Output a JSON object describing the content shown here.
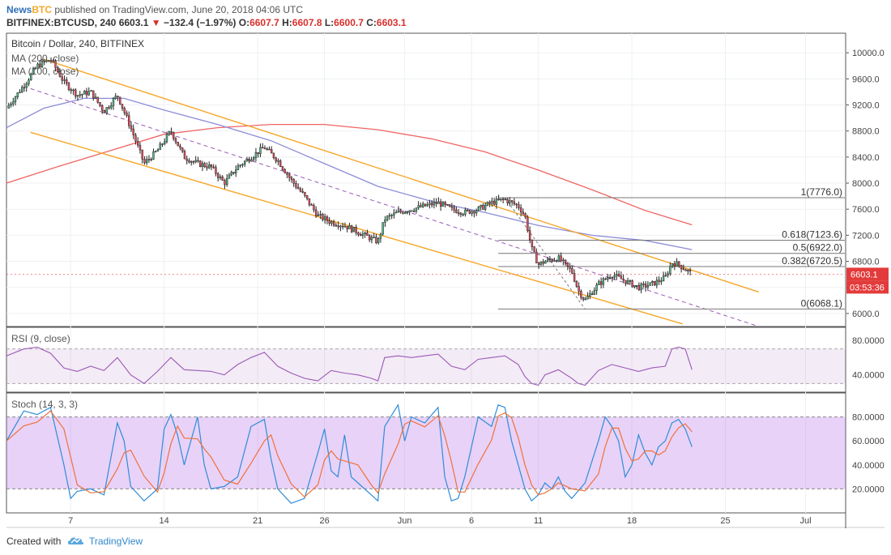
{
  "header": {
    "publisher_a": "News",
    "publisher_b": "BTC",
    "published_text": "published on TradingView.com, June 20, 2018 04:06 UTC",
    "symbol": "BITFINEX:BTCUSD, 240",
    "last": "6603.1",
    "change": "−132.4 (−1.97%)",
    "o_label": "O:",
    "o_value": "6607.7",
    "h_label": "H:",
    "h_value": "6607.8",
    "l_label": "L:",
    "l_value": "6600.7",
    "c_label": "C:",
    "c_value": "6603.1"
  },
  "chart_data": {
    "type": "candlestick",
    "title": "Bitcoin / Dollar, 240, BITFINEX",
    "indicators": [
      "MA (200, close)",
      "MA (100, close)"
    ],
    "ylim": [
      5800,
      10300
    ],
    "y_ticks": [
      6000,
      6400,
      6800,
      7200,
      7600,
      8000,
      8400,
      8800,
      9200,
      9600,
      10000
    ],
    "y_tick_labels": [
      "6000.0",
      "6400.0",
      "6800.0",
      "7200.0",
      "7600.0",
      "8000.0",
      "8400.0",
      "8800.0",
      "9200.0",
      "9600.0",
      "10000.0"
    ],
    "x_tick_labels": [
      "7",
      "14",
      "21",
      "26",
      "Jun",
      "6",
      "11",
      "18",
      "25",
      "Jul"
    ],
    "x_tick_days": [
      7,
      14,
      21,
      26,
      32,
      37,
      42,
      49,
      56,
      62
    ],
    "xlim_days": [
      2.2,
      65.0
    ],
    "colors": {
      "up": "#53b987",
      "down": "#eb4d5c",
      "wick": "#222222",
      "channel": "#f7a628",
      "ma200": "#f06464",
      "ma100": "#8c8cd8",
      "midline": "#9b59b6",
      "fib": "#777777"
    },
    "price_path": [
      [
        2.2,
        9150
      ],
      [
        3.5,
        9500
      ],
      [
        4.5,
        9800
      ],
      [
        5.5,
        9900
      ],
      [
        6.5,
        9550
      ],
      [
        7.5,
        9350
      ],
      [
        8.5,
        9400
      ],
      [
        9.5,
        9100
      ],
      [
        10.5,
        9350
      ],
      [
        11.5,
        8850
      ],
      [
        12.5,
        8300
      ],
      [
        13.5,
        8500
      ],
      [
        14.5,
        8800
      ],
      [
        15.5,
        8400
      ],
      [
        16.5,
        8300
      ],
      [
        17.5,
        8250
      ],
      [
        18.5,
        8000
      ],
      [
        19.5,
        8250
      ],
      [
        20.5,
        8400
      ],
      [
        21.5,
        8550
      ],
      [
        22.5,
        8350
      ],
      [
        23.5,
        8050
      ],
      [
        24.5,
        7800
      ],
      [
        25.5,
        7500
      ],
      [
        26.5,
        7400
      ],
      [
        27.5,
        7350
      ],
      [
        28.5,
        7250
      ],
      [
        29.5,
        7150
      ],
      [
        30.0,
        7100
      ],
      [
        30.5,
        7450
      ],
      [
        31.5,
        7550
      ],
      [
        32.5,
        7600
      ],
      [
        33.5,
        7650
      ],
      [
        34.5,
        7700
      ],
      [
        35.5,
        7600
      ],
      [
        36.5,
        7550
      ],
      [
        37.5,
        7600
      ],
      [
        38.5,
        7700
      ],
      [
        39.5,
        7750
      ],
      [
        40.5,
        7650
      ],
      [
        41.0,
        7500
      ],
      [
        41.5,
        7000
      ],
      [
        42.0,
        6750
      ],
      [
        42.5,
        6800
      ],
      [
        43.5,
        6850
      ],
      [
        44.5,
        6650
      ],
      [
        45.0,
        6350
      ],
      [
        45.5,
        6200
      ],
      [
        46.5,
        6450
      ],
      [
        47.5,
        6600
      ],
      [
        48.5,
        6500
      ],
      [
        49.5,
        6400
      ],
      [
        50.5,
        6450
      ],
      [
        51.5,
        6550
      ],
      [
        52.0,
        6780
      ],
      [
        52.5,
        6750
      ],
      [
        53.5,
        6603
      ]
    ],
    "last_price": "6603.1",
    "countdown": "03:53:36",
    "ma200": [
      [
        2.2,
        8000
      ],
      [
        6,
        8250
      ],
      [
        10,
        8500
      ],
      [
        14,
        8750
      ],
      [
        18,
        8850
      ],
      [
        22,
        8900
      ],
      [
        26,
        8900
      ],
      [
        30,
        8820
      ],
      [
        34,
        8680
      ],
      [
        38,
        8480
      ],
      [
        42,
        8200
      ],
      [
        46,
        7900
      ],
      [
        50,
        7580
      ],
      [
        53.5,
        7360
      ]
    ],
    "ma100": [
      [
        2.2,
        8850
      ],
      [
        5,
        9150
      ],
      [
        8,
        9300
      ],
      [
        11,
        9300
      ],
      [
        14,
        9120
      ],
      [
        18,
        8900
      ],
      [
        22,
        8650
      ],
      [
        26,
        8300
      ],
      [
        30,
        7950
      ],
      [
        34,
        7720
      ],
      [
        38,
        7550
      ],
      [
        42,
        7350
      ],
      [
        46,
        7200
      ],
      [
        50,
        7120
      ],
      [
        53.5,
        6980
      ]
    ],
    "channel_upper": [
      [
        5.0,
        9900
      ],
      [
        58.5,
        6330
      ]
    ],
    "channel_lower": [
      [
        4.0,
        8780
      ],
      [
        52.8,
        5840
      ]
    ],
    "channel_mid": [
      [
        4.0,
        9450
      ],
      [
        58.5,
        5800
      ]
    ],
    "fib_connector": [
      [
        39.5,
        7776
      ],
      [
        45.5,
        6068
      ]
    ],
    "fib_levels": [
      {
        "label": "1(7776.0)",
        "value": 7776
      },
      {
        "label": "0.618(7123.6)",
        "value": 7123.6
      },
      {
        "label": "0.5(6922.0)",
        "value": 6922
      },
      {
        "label": "0.382(6720.5)",
        "value": 6720.5
      },
      {
        "label": "0(6068.1)",
        "value": 6068.1
      }
    ],
    "fib_start_day": 39.0,
    "rsi": {
      "label": "RSI (9, close)",
      "ylim": [
        20,
        95
      ],
      "ticks": [
        40,
        80
      ],
      "tick_labels": [
        "40.0000",
        "80.0000"
      ],
      "band": [
        30,
        70
      ],
      "color": "#9b59b6",
      "values": [
        [
          2.2,
          62
        ],
        [
          3.5,
          70
        ],
        [
          4.5,
          72
        ],
        [
          5.5,
          65
        ],
        [
          6.5,
          48
        ],
        [
          7.5,
          44
        ],
        [
          8.5,
          50
        ],
        [
          9.5,
          45
        ],
        [
          10.5,
          60
        ],
        [
          11.5,
          40
        ],
        [
          12.5,
          30
        ],
        [
          13.5,
          44
        ],
        [
          14.5,
          60
        ],
        [
          15.5,
          46
        ],
        [
          16.5,
          45
        ],
        [
          17.5,
          44
        ],
        [
          18.5,
          40
        ],
        [
          19.5,
          52
        ],
        [
          20.5,
          60
        ],
        [
          21.5,
          66
        ],
        [
          22.5,
          50
        ],
        [
          23.5,
          42
        ],
        [
          24.5,
          36
        ],
        [
          25.5,
          33
        ],
        [
          26.5,
          45
        ],
        [
          27.5,
          42
        ],
        [
          28.5,
          40
        ],
        [
          29.5,
          36
        ],
        [
          30.0,
          33
        ],
        [
          30.5,
          60
        ],
        [
          31.5,
          62
        ],
        [
          32.5,
          60
        ],
        [
          33.5,
          62
        ],
        [
          34.5,
          64
        ],
        [
          35.5,
          50
        ],
        [
          36.5,
          46
        ],
        [
          37.5,
          58
        ],
        [
          38.5,
          60
        ],
        [
          39.5,
          62
        ],
        [
          40.5,
          52
        ],
        [
          41.0,
          38
        ],
        [
          41.5,
          30
        ],
        [
          42.0,
          28
        ],
        [
          42.5,
          40
        ],
        [
          43.5,
          46
        ],
        [
          44.5,
          36
        ],
        [
          45.0,
          30
        ],
        [
          45.5,
          28
        ],
        [
          46.5,
          45
        ],
        [
          47.5,
          52
        ],
        [
          48.5,
          48
        ],
        [
          49.5,
          44
        ],
        [
          50.5,
          48
        ],
        [
          51.5,
          50
        ],
        [
          52.0,
          70
        ],
        [
          52.5,
          72
        ],
        [
          53.0,
          70
        ],
        [
          53.5,
          46
        ]
      ]
    },
    "stoch": {
      "label": "Stoch (14, 3, 3)",
      "ylim": [
        0,
        100
      ],
      "ticks": [
        20,
        40,
        60,
        80
      ],
      "tick_labels": [
        "20.0000",
        "40.0000",
        "60.0000",
        "80.0000"
      ],
      "band": [
        20,
        80
      ],
      "k_color": "#2f8cd8",
      "d_color": "#f0713a",
      "values": [
        [
          2.2,
          60
        ],
        [
          3.5,
          85
        ],
        [
          4.5,
          82
        ],
        [
          5.5,
          88
        ],
        [
          6.5,
          40
        ],
        [
          7.0,
          12
        ],
        [
          7.5,
          18
        ],
        [
          8.5,
          20
        ],
        [
          9.5,
          15
        ],
        [
          10.5,
          75
        ],
        [
          11.0,
          60
        ],
        [
          11.5,
          22
        ],
        [
          12.5,
          10
        ],
        [
          13.5,
          20
        ],
        [
          14.0,
          70
        ],
        [
          14.5,
          82
        ],
        [
          15.0,
          65
        ],
        [
          15.5,
          40
        ],
        [
          16.5,
          80
        ],
        [
          17.0,
          40
        ],
        [
          17.5,
          20
        ],
        [
          18.5,
          22
        ],
        [
          19.5,
          30
        ],
        [
          20.5,
          72
        ],
        [
          21.5,
          78
        ],
        [
          22.0,
          45
        ],
        [
          22.5,
          20
        ],
        [
          23.5,
          8
        ],
        [
          24.5,
          12
        ],
        [
          25.5,
          50
        ],
        [
          26.0,
          70
        ],
        [
          26.5,
          35
        ],
        [
          27.0,
          30
        ],
        [
          27.5,
          65
        ],
        [
          28.0,
          30
        ],
        [
          28.5,
          25
        ],
        [
          29.5,
          15
        ],
        [
          30.0,
          10
        ],
        [
          30.5,
          72
        ],
        [
          31.5,
          90
        ],
        [
          32.0,
          60
        ],
        [
          32.5,
          80
        ],
        [
          33.5,
          75
        ],
        [
          34.5,
          88
        ],
        [
          35.0,
          30
        ],
        [
          35.5,
          10
        ],
        [
          36.0,
          12
        ],
        [
          36.5,
          30
        ],
        [
          37.5,
          80
        ],
        [
          38.5,
          72
        ],
        [
          39.0,
          90
        ],
        [
          39.5,
          88
        ],
        [
          40.0,
          60
        ],
        [
          40.5,
          40
        ],
        [
          41.0,
          20
        ],
        [
          41.5,
          10
        ],
        [
          42.0,
          15
        ],
        [
          42.5,
          25
        ],
        [
          43.0,
          20
        ],
        [
          43.5,
          30
        ],
        [
          44.0,
          18
        ],
        [
          44.5,
          12
        ],
        [
          45.5,
          25
        ],
        [
          46.5,
          60
        ],
        [
          47.0,
          80
        ],
        [
          47.5,
          72
        ],
        [
          48.0,
          60
        ],
        [
          48.5,
          30
        ],
        [
          49.0,
          40
        ],
        [
          49.5,
          65
        ],
        [
          50.0,
          50
        ],
        [
          50.5,
          40
        ],
        [
          51.0,
          55
        ],
        [
          51.5,
          60
        ],
        [
          52.0,
          75
        ],
        [
          52.5,
          78
        ],
        [
          53.0,
          70
        ],
        [
          53.5,
          55
        ]
      ]
    }
  },
  "footer": {
    "created_with": "Created with",
    "brand": "TradingView"
  }
}
